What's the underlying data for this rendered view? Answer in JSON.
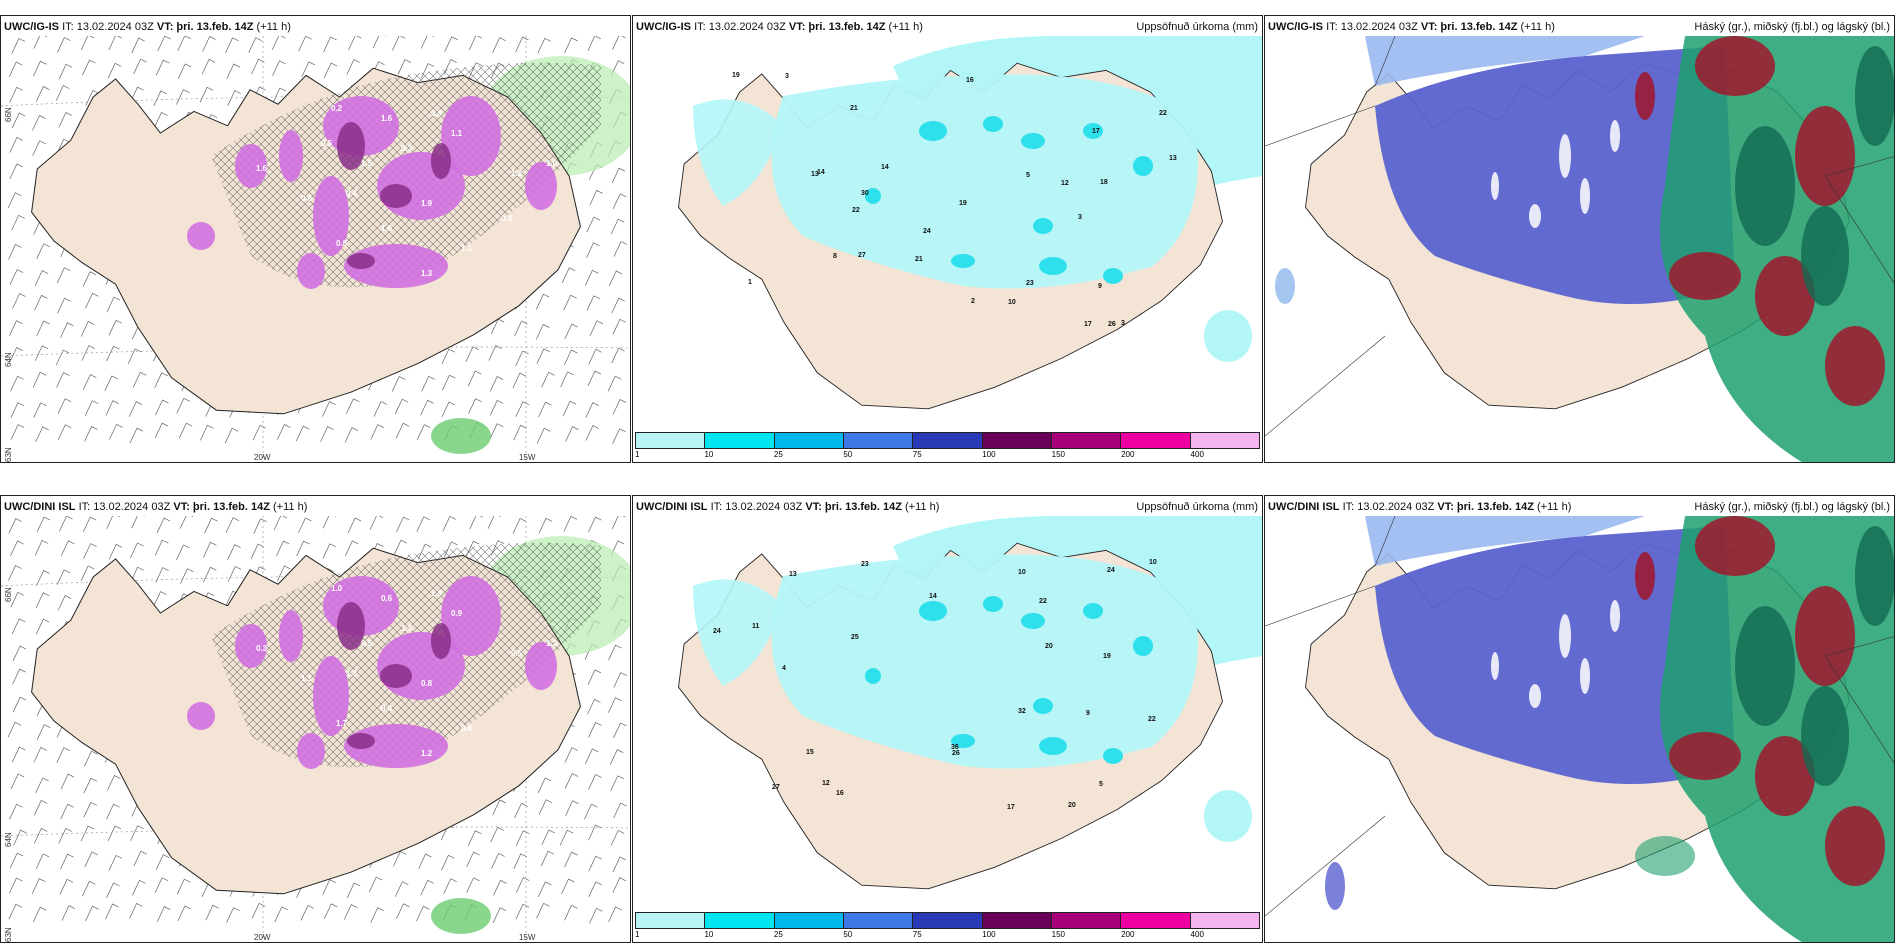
{
  "panels": [
    {
      "model": "UWC/IG-IS",
      "it": "IT: 13.02.2024 03Z",
      "vt": "VT: þri. 13.feb. 14Z",
      "lead": "(+11 h)",
      "title": "",
      "type": "wind"
    },
    {
      "model": "UWC/IG-IS",
      "it": "IT: 13.02.2024 03Z",
      "vt": "VT: þri. 13.feb. 14Z",
      "lead": "(+11 h)",
      "title": "Uppsöfnuð úrkoma (mm)",
      "type": "precip"
    },
    {
      "model": "UWC/IG-IS",
      "it": "IT: 13.02.2024 03Z",
      "vt": "VT: þri. 13.feb. 14Z",
      "lead": "(+11 h)",
      "title": "Háský (gr.), miðský (fj.bl.) og lágský (bl.)",
      "type": "cloud"
    },
    {
      "model": "UWC/DINI ISL",
      "it": "IT: 13.02.2024 03Z",
      "vt": "VT: þri. 13.feb. 14Z",
      "lead": "(+11 h)",
      "title": "",
      "type": "wind"
    },
    {
      "model": "UWC/DINI ISL",
      "it": "IT: 13.02.2024 03Z",
      "vt": "VT: þri. 13.feb. 14Z",
      "lead": "(+11 h)",
      "title": "Uppsöfnuð úrkoma (mm)",
      "type": "precip"
    },
    {
      "model": "UWC/DINI ISL",
      "it": "IT: 13.02.2024 03Z",
      "vt": "VT: þri. 13.feb. 14Z",
      "lead": "(+11 h)",
      "title": "Háský (gr.), miðský (fj.bl.) og lágský (bl.)",
      "type": "cloud"
    }
  ],
  "axis_labels": {
    "lat66": "66N",
    "lat64": "64N",
    "lat63": "63N",
    "lon20": "20W",
    "lon15": "15W"
  },
  "legend": {
    "labels": [
      "1",
      "10",
      "25",
      "50",
      "75",
      "100",
      "150",
      "200",
      "400"
    ],
    "colors": [
      "#b8f4f4",
      "#00e5f0",
      "#00b8ea",
      "#3c78e6",
      "#2a3ab6",
      "#6a0058",
      "#a8007a",
      "#ee00a0",
      "#f4b4f0"
    ]
  },
  "colors": {
    "land": "#f3e4d5",
    "precip_light": "#b3f6f8",
    "precip_mid": "#2ee0ec",
    "wind_pink": "#d070e0",
    "cloud_high": "#5a62cf",
    "cloud_mid": "#1fa06e",
    "cloud_low": "#a0182c",
    "green_area": "#b8ecb0"
  },
  "upper_precip_values": [
    "24",
    "13",
    "3",
    "3",
    "3",
    "21",
    "21",
    "22",
    "27",
    "12",
    "18",
    "16",
    "19",
    "17",
    "30",
    "23",
    "19",
    "13",
    "22",
    "14",
    "26",
    "14",
    "10",
    "8",
    "9",
    "5",
    "2",
    "1",
    "17"
  ],
  "lower_precip_values": [
    "22",
    "20",
    "26",
    "27",
    "36",
    "25",
    "23",
    "22",
    "17",
    "19",
    "32",
    "24",
    "24",
    "20",
    "16",
    "13",
    "15",
    "12",
    "10",
    "14",
    "11",
    "9",
    "5",
    "4",
    "10"
  ],
  "upper_wind_values": [
    "0.2",
    "1.6",
    "0.9",
    "1.5",
    "0.3",
    "1.1",
    "0.4",
    "1.9",
    "1.6",
    "0.8",
    "1.3",
    "1.1",
    "0.6",
    "1.2",
    "1.0",
    "1.6",
    "0.5",
    "0.3"
  ],
  "lower_wind_values": [
    "1.0",
    "0.6",
    "1.9",
    "0.5",
    "1.4",
    "0.9",
    "1.3",
    "0.8",
    "0.0",
    "1.7",
    "1.2",
    "0.6",
    "1.1",
    "0.5",
    "1.3",
    "0.3"
  ]
}
